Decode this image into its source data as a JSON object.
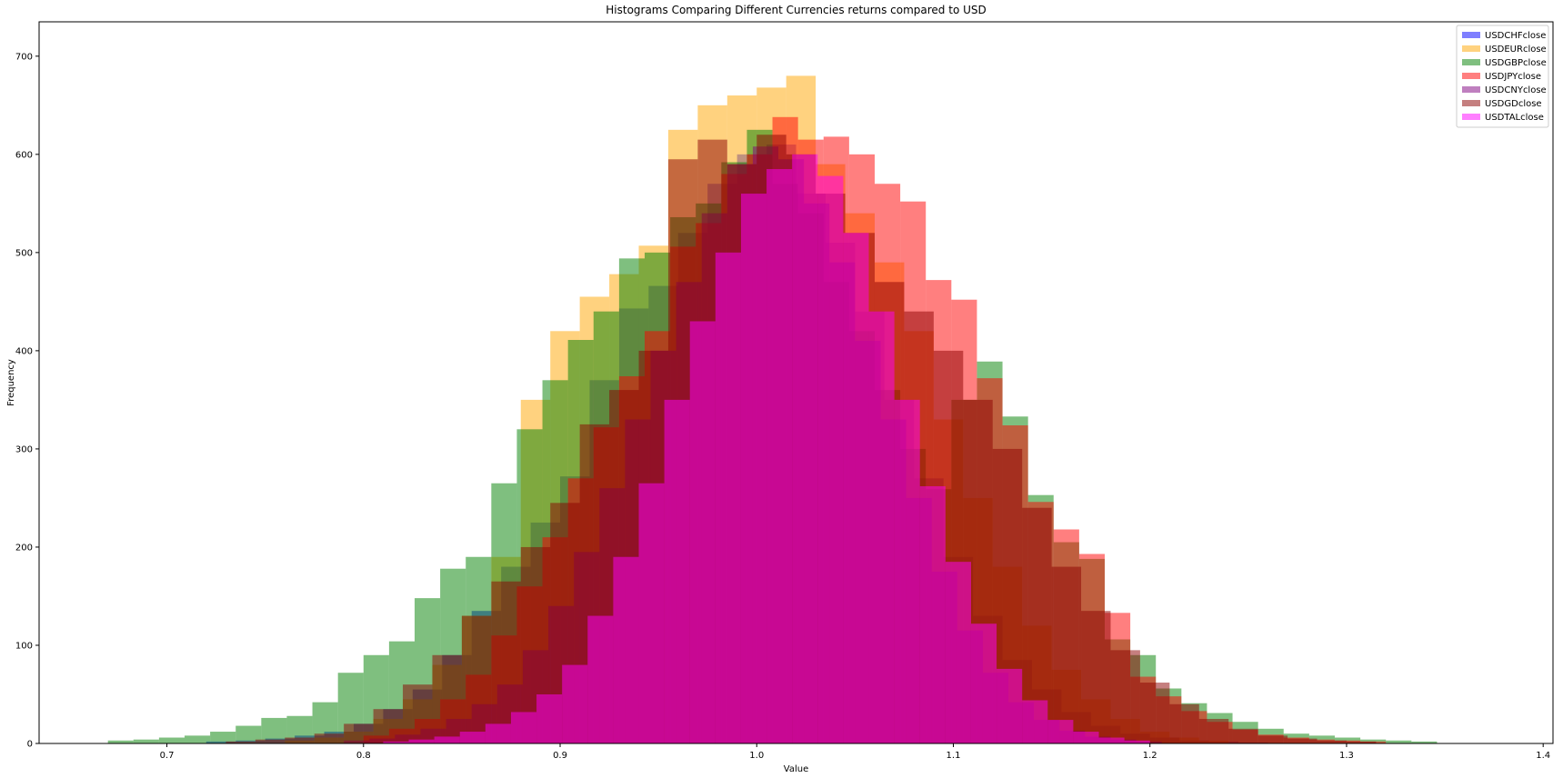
{
  "chart_data": {
    "type": "bar",
    "subtype": "overlaid-histogram",
    "title": "Histograms Comparing Different Currencies returns compared to USD",
    "xlabel": "Value",
    "ylabel": "Frequency",
    "xlim": [
      0.635,
      1.405
    ],
    "ylim": [
      0,
      735
    ],
    "x_ticks": [
      "0.7",
      "0.8",
      "0.9",
      "1.0",
      "1.1",
      "1.2",
      "1.3",
      "1.4"
    ],
    "y_ticks": [
      "0",
      "100",
      "200",
      "300",
      "400",
      "500",
      "600",
      "700"
    ],
    "grid": false,
    "legend_position": "top-right",
    "bar_opacity": 0.5,
    "series": [
      {
        "name": "USDCHFclose",
        "color": "#0000ff",
        "bin_edges": [
          0.72,
          0.735,
          0.75,
          0.765,
          0.78,
          0.795,
          0.81,
          0.825,
          0.84,
          0.855,
          0.87,
          0.885,
          0.9,
          0.915,
          0.93,
          0.945,
          0.96,
          0.975,
          0.99,
          1.005,
          1.02,
          1.035,
          1.05,
          1.065,
          1.08,
          1.095,
          1.11,
          1.125,
          1.14,
          1.155,
          1.17,
          1.185,
          1.2,
          1.215,
          1.23,
          1.245,
          1.26
        ],
        "counts": [
          2,
          3,
          5,
          8,
          12,
          20,
          35,
          55,
          90,
          135,
          180,
          225,
          272,
          370,
          443,
          466,
          520,
          570,
          600,
          610,
          560,
          510,
          440,
          350,
          270,
          190,
          130,
          85,
          55,
          32,
          18,
          10,
          6,
          3,
          2,
          1
        ]
      },
      {
        "name": "USDEURclose",
        "color": "#ffa500",
        "bin_edges": [
          0.76,
          0.775,
          0.79,
          0.805,
          0.82,
          0.835,
          0.85,
          0.865,
          0.88,
          0.895,
          0.91,
          0.925,
          0.94,
          0.955,
          0.97,
          0.985,
          1.0,
          1.015,
          1.03,
          1.045,
          1.06,
          1.075,
          1.09,
          1.105,
          1.12,
          1.135,
          1.15,
          1.165,
          1.18,
          1.195,
          1.21,
          1.225,
          1.24
        ],
        "counts": [
          3,
          6,
          12,
          25,
          45,
          80,
          130,
          190,
          350,
          420,
          455,
          478,
          507,
          625,
          650,
          660,
          668,
          680,
          590,
          540,
          490,
          420,
          330,
          250,
          180,
          120,
          75,
          45,
          25,
          12,
          6,
          3
        ]
      },
      {
        "name": "USDGBPclose",
        "color": "#008000",
        "bin_edges": [
          0.67,
          0.683,
          0.696,
          0.709,
          0.722,
          0.735,
          0.748,
          0.761,
          0.774,
          0.787,
          0.8,
          0.813,
          0.826,
          0.839,
          0.852,
          0.865,
          0.878,
          0.891,
          0.904,
          0.917,
          0.93,
          0.943,
          0.956,
          0.969,
          0.982,
          0.995,
          1.008,
          1.021,
          1.034,
          1.047,
          1.06,
          1.073,
          1.086,
          1.099,
          1.112,
          1.125,
          1.138,
          1.151,
          1.164,
          1.177,
          1.19,
          1.203,
          1.216,
          1.229,
          1.242,
          1.255,
          1.268,
          1.281,
          1.294,
          1.307,
          1.32,
          1.333,
          1.346
        ],
        "counts": [
          3,
          4,
          6,
          8,
          12,
          18,
          26,
          28,
          42,
          72,
          90,
          104,
          148,
          178,
          190,
          265,
          320,
          370,
          411,
          440,
          494,
          500,
          536,
          550,
          592,
          625,
          570,
          540,
          470,
          420,
          360,
          300,
          259,
          350,
          389,
          333,
          253,
          205,
          188,
          106,
          90,
          56,
          41,
          31,
          22,
          15,
          10,
          8,
          6,
          4,
          3,
          2
        ]
      },
      {
        "name": "USDJPYclose",
        "color": "#ff0000",
        "bin_edges": [
          0.8,
          0.813,
          0.826,
          0.839,
          0.852,
          0.865,
          0.878,
          0.891,
          0.904,
          0.917,
          0.93,
          0.943,
          0.956,
          0.969,
          0.982,
          0.995,
          1.008,
          1.021,
          1.034,
          1.047,
          1.06,
          1.073,
          1.086,
          1.099,
          1.112,
          1.125,
          1.138,
          1.151,
          1.164,
          1.177,
          1.19,
          1.203,
          1.216,
          1.229,
          1.242,
          1.255,
          1.268,
          1.281,
          1.294,
          1.307,
          1.32
        ],
        "counts": [
          8,
          15,
          25,
          45,
          70,
          110,
          160,
          210,
          270,
          322,
          374,
          420,
          506,
          530,
          580,
          600,
          638,
          615,
          618,
          600,
          570,
          552,
          472,
          452,
          372,
          324,
          246,
          218,
          193,
          133,
          68,
          48,
          33,
          22,
          14,
          9,
          6,
          4,
          3,
          2
        ]
      },
      {
        "name": "USDCNYclose",
        "color": "#800080",
        "bin_edges": [
          0.79,
          0.803,
          0.816,
          0.829,
          0.842,
          0.855,
          0.868,
          0.881,
          0.894,
          0.907,
          0.92,
          0.933,
          0.946,
          0.959,
          0.972,
          0.985,
          0.998,
          1.011,
          1.024,
          1.037,
          1.05,
          1.063,
          1.076,
          1.089,
          1.102,
          1.115,
          1.128,
          1.141,
          1.154,
          1.167,
          1.18,
          1.193,
          1.206
        ],
        "counts": [
          3,
          5,
          9,
          15,
          25,
          40,
          60,
          95,
          140,
          195,
          260,
          330,
          400,
          470,
          540,
          590,
          608,
          595,
          550,
          490,
          410,
          330,
          250,
          175,
          115,
          72,
          42,
          24,
          13,
          7,
          4,
          2
        ]
      },
      {
        "name": "USDGDclose",
        "color": "#8b0000",
        "bin_edges": [
          0.73,
          0.745,
          0.76,
          0.775,
          0.79,
          0.805,
          0.82,
          0.835,
          0.85,
          0.865,
          0.88,
          0.895,
          0.91,
          0.925,
          0.94,
          0.955,
          0.97,
          0.985,
          1.0,
          1.015,
          1.03,
          1.045,
          1.06,
          1.075,
          1.09,
          1.105,
          1.12,
          1.135,
          1.15,
          1.165,
          1.18,
          1.195,
          1.21,
          1.225,
          1.24,
          1.255,
          1.27,
          1.285,
          1.3,
          1.315
        ],
        "counts": [
          2,
          4,
          6,
          10,
          20,
          35,
          60,
          90,
          130,
          165,
          200,
          245,
          325,
          360,
          400,
          595,
          615,
          590,
          620,
          600,
          560,
          520,
          470,
          440,
          400,
          350,
          300,
          240,
          180,
          135,
          95,
          62,
          40,
          25,
          15,
          8,
          5,
          3,
          2
        ]
      },
      {
        "name": "USDTALclose",
        "color": "#ff00ff",
        "bin_edges": [
          0.81,
          0.823,
          0.836,
          0.849,
          0.862,
          0.875,
          0.888,
          0.901,
          0.914,
          0.927,
          0.94,
          0.953,
          0.966,
          0.979,
          0.992,
          1.005,
          1.018,
          1.031,
          1.044,
          1.057,
          1.07,
          1.083,
          1.096,
          1.109,
          1.122,
          1.135,
          1.148,
          1.161,
          1.174,
          1.187,
          1.2
        ],
        "counts": [
          2,
          4,
          7,
          12,
          20,
          32,
          50,
          80,
          130,
          190,
          265,
          350,
          430,
          500,
          560,
          585,
          600,
          578,
          520,
          440,
          350,
          262,
          185,
          122,
          76,
          44,
          24,
          12,
          6,
          3
        ]
      }
    ]
  }
}
